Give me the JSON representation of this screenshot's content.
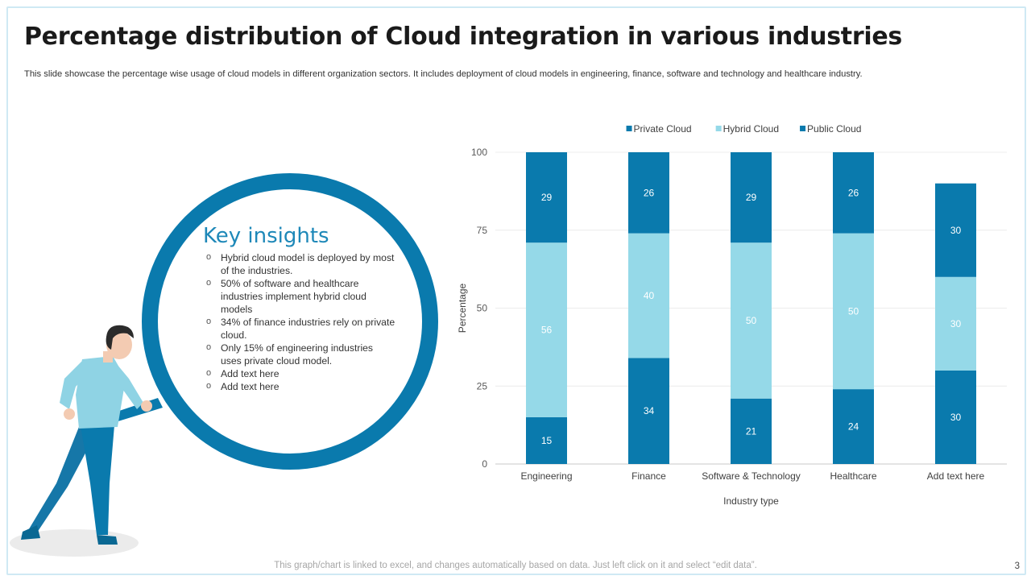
{
  "title": "Percentage distribution of Cloud integration in various industries",
  "subtitle": "This slide showcase the percentage wise usage of cloud models in different organization sectors. It includes deployment of cloud models in engineering, finance, software and technology and healthcare industry.",
  "insights": {
    "heading": "Key insights",
    "items": [
      "Hybrid cloud model is deployed by most of the industries.",
      "50% of software and healthcare industries implement hybrid cloud models",
      "34% of finance industries rely on private cloud.",
      "Only 15% of engineering industries uses private cloud model.",
      "Add text here",
      "Add text here"
    ]
  },
  "footer_note": "This graph/chart is linked to excel, and changes automatically based on data. Just left click on it and select “edit data”.",
  "page_number": "3",
  "colors": {
    "accent": "#0a7aad",
    "private": "#0a7aad",
    "hybrid": "#95d9e8",
    "public": "#0a7aad"
  },
  "chart_data": {
    "type": "bar",
    "stacked": true,
    "categories": [
      "Engineering",
      "Finance",
      "Software & Technology",
      "Healthcare",
      "Add text here"
    ],
    "series": [
      {
        "name": "Private Cloud",
        "values": [
          15,
          34,
          21,
          24,
          30
        ],
        "color": "#0a7aad"
      },
      {
        "name": "Hybrid Cloud",
        "values": [
          56,
          40,
          50,
          50,
          30
        ],
        "color": "#95d9e8"
      },
      {
        "name": "Public Cloud",
        "values": [
          29,
          26,
          29,
          26,
          30
        ],
        "color": "#0a7aad"
      }
    ],
    "xlabel": "Industry type",
    "ylabel": "Percentage",
    "ylim": [
      0,
      100
    ],
    "yticks": [
      0,
      25,
      50,
      75,
      100
    ],
    "legend_position": "top",
    "grid": true
  }
}
